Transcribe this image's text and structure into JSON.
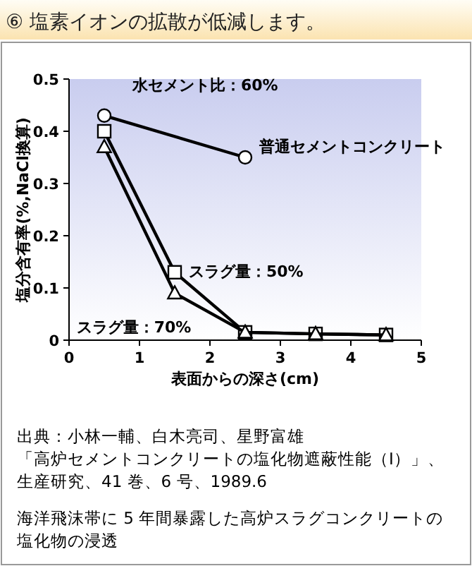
{
  "chart_data": {
    "type": "line",
    "title": "⑥ 塩素イオンの拡散が低減します。",
    "xlabel": "表面からの深さ(cm)",
    "ylabel": "塩分含有率(%,NaCl換算)",
    "xlim": [
      0,
      5
    ],
    "xticks": [
      0,
      1,
      2,
      3,
      4,
      5
    ],
    "ylim": [
      0,
      0.5
    ],
    "yticks": [
      0,
      0.1,
      0.2,
      0.3,
      0.4,
      0.5
    ],
    "grid": false,
    "line_style": "solid",
    "series": [
      {
        "name": "普通セメントコンクリート",
        "color": "#000000",
        "marker": "circle",
        "x": [
          0.5,
          2.5
        ],
        "values": [
          0.43,
          0.35
        ]
      },
      {
        "name": "スラグ量：50%",
        "color": "#000000",
        "marker": "square",
        "x": [
          0.5,
          1.5,
          2.5,
          3.5,
          4.5
        ],
        "values": [
          0.4,
          0.13,
          0.015,
          0.012,
          0.01
        ]
      },
      {
        "name": "スラグ量：70%",
        "color": "#000000",
        "marker": "triangle",
        "x": [
          0.5,
          1.5,
          2.5,
          3.5,
          4.5
        ],
        "values": [
          0.37,
          0.09,
          0.015,
          0.012,
          0.01
        ]
      }
    ],
    "annotations": [
      "水セメント比：60%",
      "出典：小林一輔、白木亮司、星野富雄",
      "「高炉セメントコンクリートの塩化物遮蔽性能（Ⅰ）」、",
      "生産研究、41 巻、6 号、1989.6",
      "海洋飛沫帯に 5 年間暴露した高炉スラグコンクリートの塩化物の浸透"
    ]
  }
}
